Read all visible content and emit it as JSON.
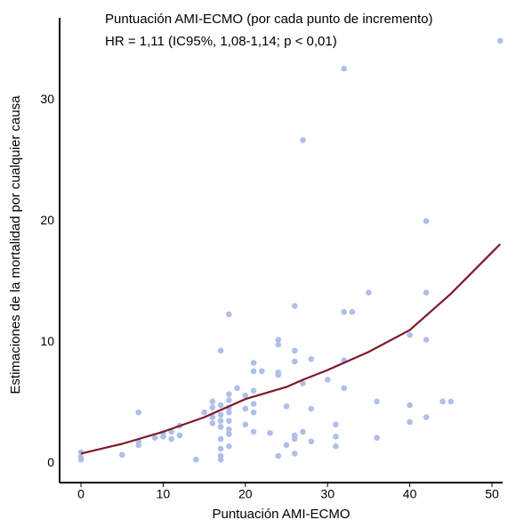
{
  "chart_data": {
    "type": "scatter",
    "title": "Puntuación AMI-ECMO (por cada punto de incremento)",
    "subtitle": "HR = 1,11 (IC95%, 1,08-1,14; p < 0,01)",
    "x_label": "Puntuación AMI-ECMO",
    "y_label": "Estimaciones de la mortalidad por cualquier causa",
    "xlim": [
      -2.6,
      51.3
    ],
    "ylim": [
      -1.6,
      36.8
    ],
    "xticks": [
      0,
      10,
      20,
      30,
      40,
      50
    ],
    "yticks": [
      0,
      10,
      20,
      30
    ],
    "grid": false,
    "series": [
      {
        "type": "scatter",
        "color": "#aebfe8",
        "x": [
          0,
          0,
          0,
          5,
          7,
          7,
          7,
          9,
          10,
          10,
          11,
          11,
          12,
          12,
          14,
          15,
          16,
          16,
          16,
          16,
          17,
          17,
          17,
          17,
          17,
          17,
          17,
          17,
          17,
          18,
          18,
          18,
          18,
          18,
          18,
          18,
          18,
          18,
          19,
          20,
          20,
          20,
          21,
          21,
          21,
          21,
          21,
          21,
          22,
          23,
          24,
          24,
          24,
          24,
          24,
          25,
          25,
          26,
          26,
          26,
          26,
          26,
          26,
          27,
          27,
          27,
          28,
          28,
          28,
          30,
          31,
          31,
          31,
          32,
          32,
          32,
          32,
          33,
          35,
          36,
          36,
          40,
          40,
          40,
          42,
          42,
          42,
          42,
          44,
          45,
          51
        ],
        "values": [
          0.5,
          0.9,
          0.3,
          0.7,
          1.5,
          1.8,
          4.2,
          2.1,
          2.5,
          2.2,
          2.6,
          2.0,
          3.1,
          2.3,
          0.3,
          4.2,
          5.1,
          4.6,
          3.8,
          3.3,
          9.3,
          4.8,
          4.0,
          3.5,
          3.0,
          2.0,
          1.2,
          0.6,
          0.3,
          12.3,
          5.7,
          5.2,
          4.6,
          4.2,
          3.5,
          2.8,
          2.4,
          1.4,
          6.2,
          5.6,
          4.5,
          3.2,
          8.3,
          7.6,
          6.0,
          4.9,
          4.2,
          2.6,
          7.6,
          2.5,
          10.2,
          9.8,
          7.5,
          7.3,
          0.6,
          4.7,
          1.5,
          13.0,
          9.3,
          8.4,
          2.3,
          2.0,
          0.8,
          26.7,
          6.6,
          2.6,
          8.6,
          4.5,
          1.8,
          6.9,
          3.2,
          2.2,
          1.4,
          32.6,
          12.5,
          8.5,
          6.2,
          12.5,
          14.1,
          5.1,
          2.1,
          10.6,
          4.8,
          3.4,
          20.0,
          14.1,
          10.2,
          3.8,
          5.1,
          5.1,
          34.9
        ]
      },
      {
        "type": "line",
        "color": "#7b1a2a",
        "x": [
          0,
          5,
          10,
          15,
          20,
          25,
          27,
          30,
          35,
          40,
          45,
          51
        ],
        "values": [
          0.8,
          1.6,
          2.6,
          3.8,
          5.3,
          6.3,
          6.9,
          7.7,
          9.2,
          11.0,
          14.0,
          18.1
        ]
      }
    ]
  }
}
